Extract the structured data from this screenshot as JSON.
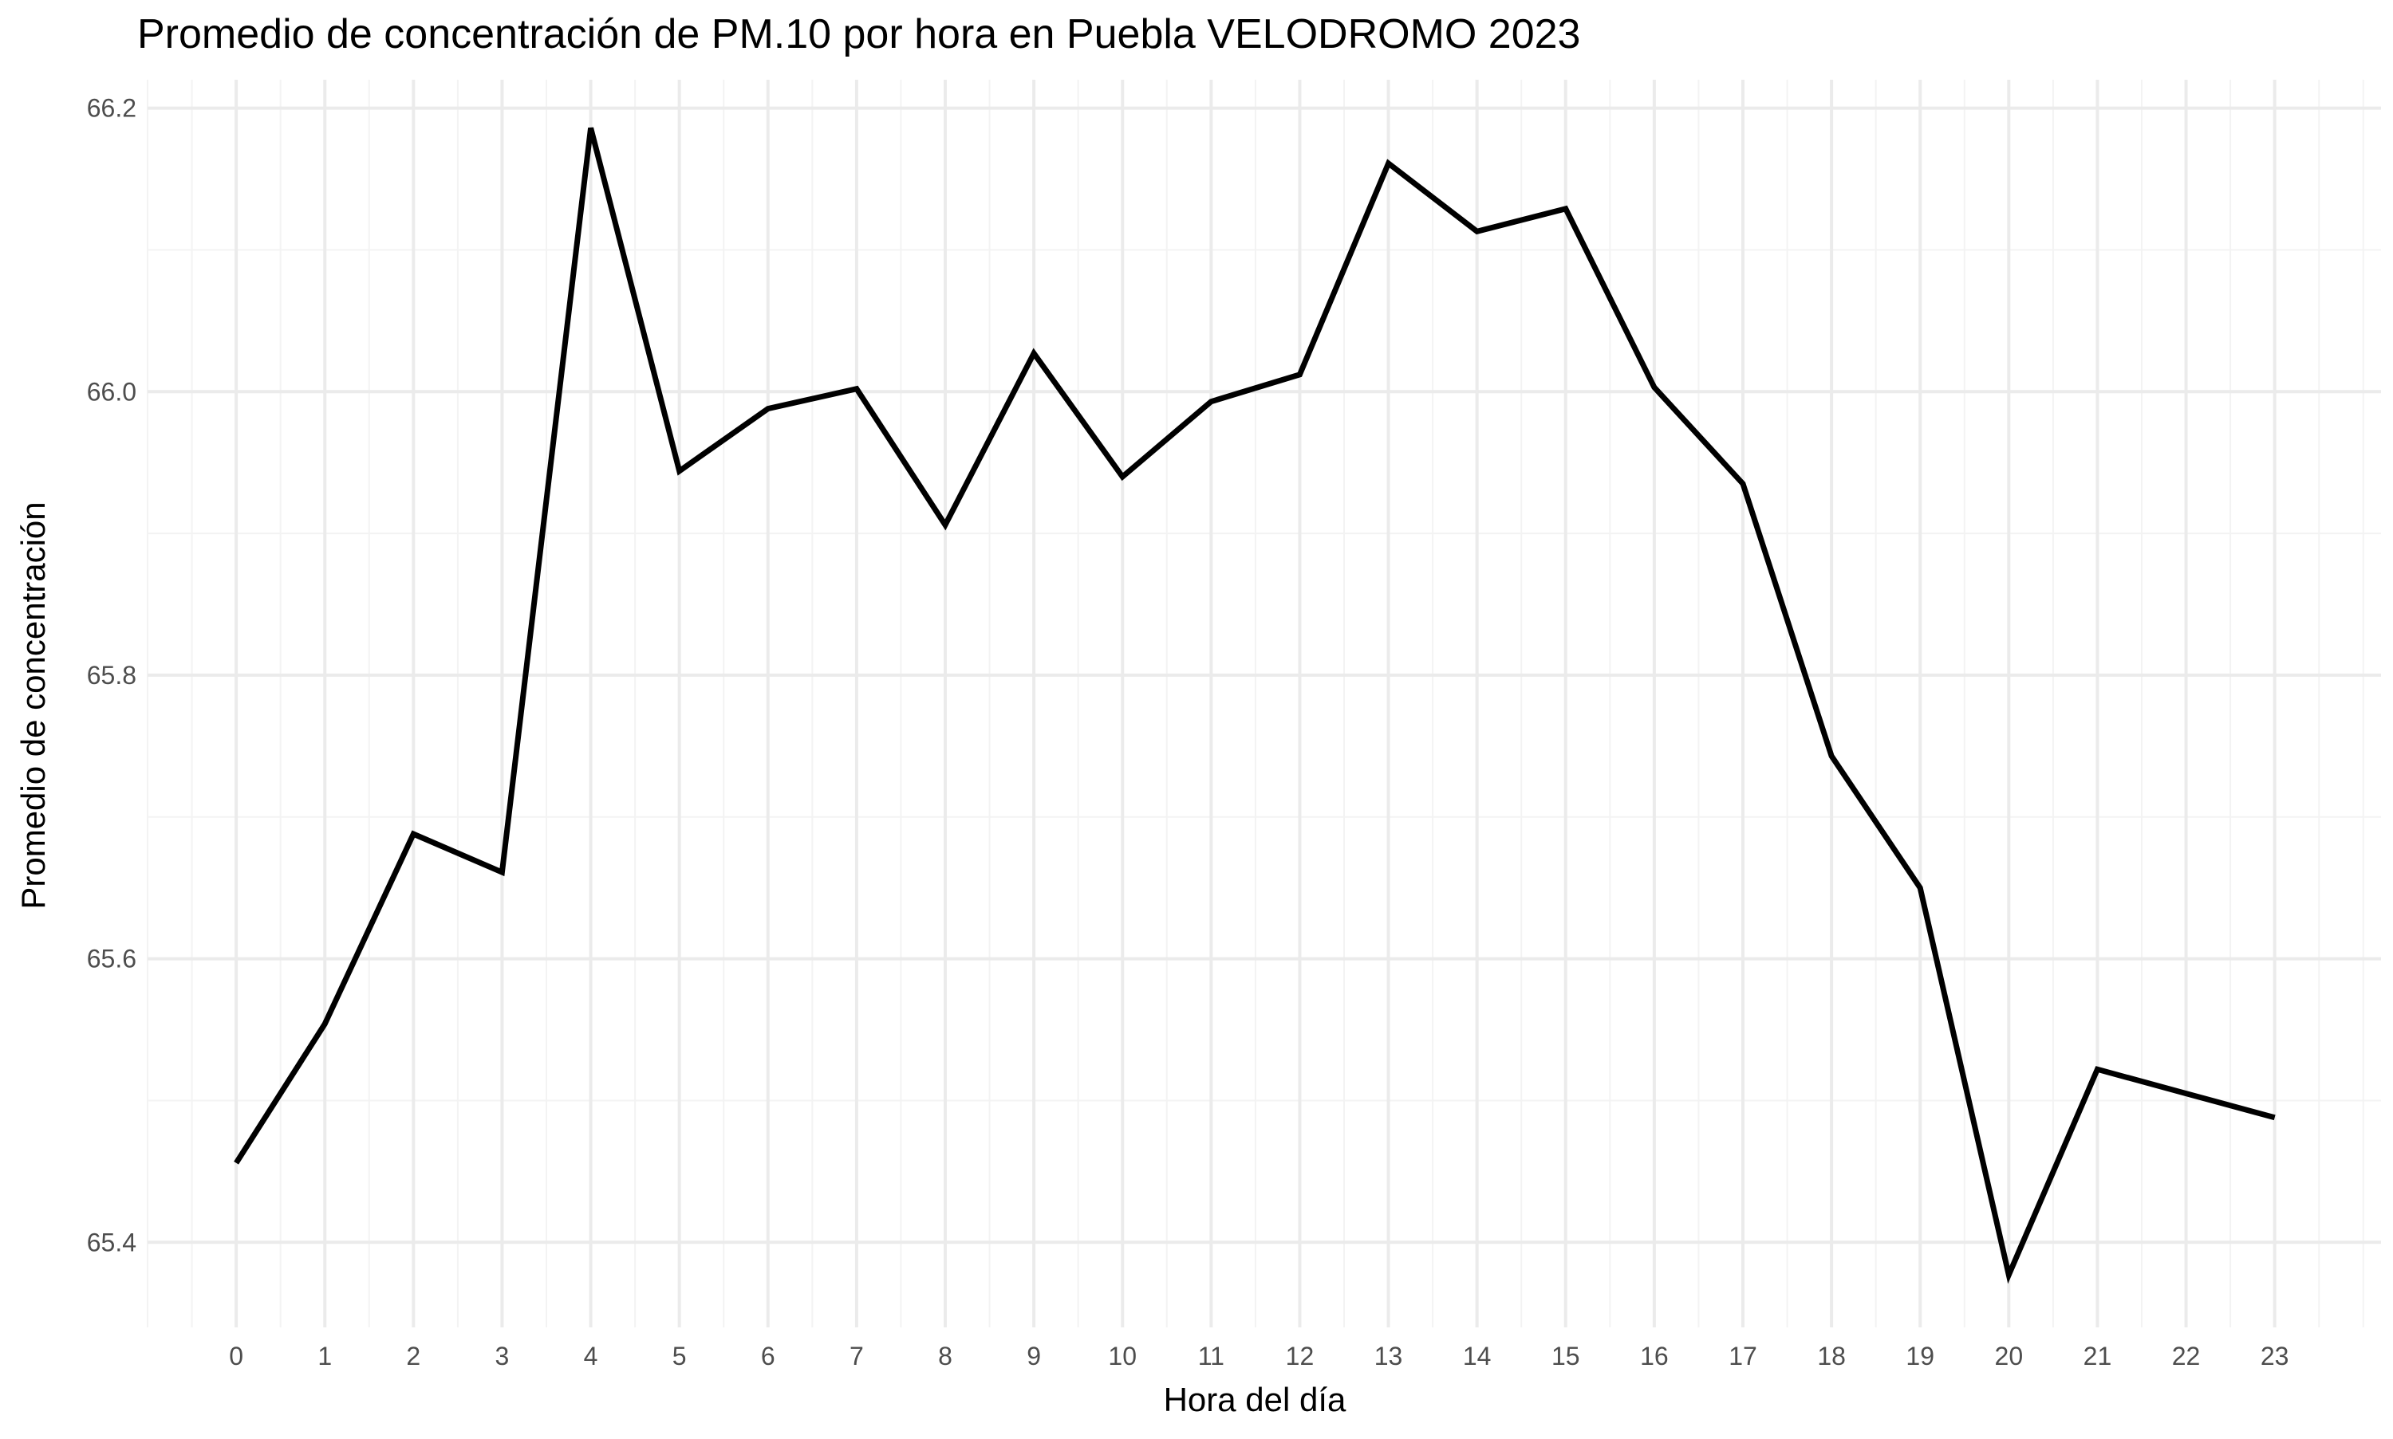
{
  "chart_data": {
    "type": "line",
    "title": "Promedio de concentración de PM.10 por hora en Puebla VELODROMO 2023",
    "xlabel": "Hora del día",
    "ylabel": "Promedio de concentración",
    "x": [
      0,
      1,
      2,
      3,
      4,
      5,
      6,
      7,
      8,
      9,
      10,
      11,
      12,
      13,
      14,
      15,
      16,
      17,
      18,
      19,
      20,
      21,
      22,
      23
    ],
    "x_tick_labels": [
      "0",
      "1",
      "2",
      "3",
      "4",
      "5",
      "6",
      "7",
      "8",
      "9",
      "10",
      "11",
      "12",
      "13",
      "14",
      "15",
      "16",
      "17",
      "18",
      "19",
      "20",
      "21",
      "22",
      "23"
    ],
    "series": [
      {
        "values": [
          65.456,
          65.554,
          65.688,
          65.661,
          66.186,
          65.944,
          65.988,
          66.002,
          65.906,
          66.027,
          65.94,
          65.993,
          66.012,
          66.161,
          66.113,
          66.129,
          66.003,
          65.935,
          65.743,
          65.65,
          65.377,
          65.522,
          65.505,
          65.488
        ],
        "color": "#000000"
      }
    ],
    "xlim": [
      -1.0,
      24.2
    ],
    "ylim": [
      65.34,
      66.22
    ],
    "y_ticks": [
      65.4,
      65.6,
      65.8,
      66.0,
      66.2
    ],
    "y_tick_labels": [
      "65.4",
      "65.6",
      "65.8",
      "66.0",
      "66.2"
    ],
    "y_minor_ticks": [
      65.5,
      65.7,
      65.9,
      66.1
    ],
    "grid": true,
    "legend": "none"
  }
}
